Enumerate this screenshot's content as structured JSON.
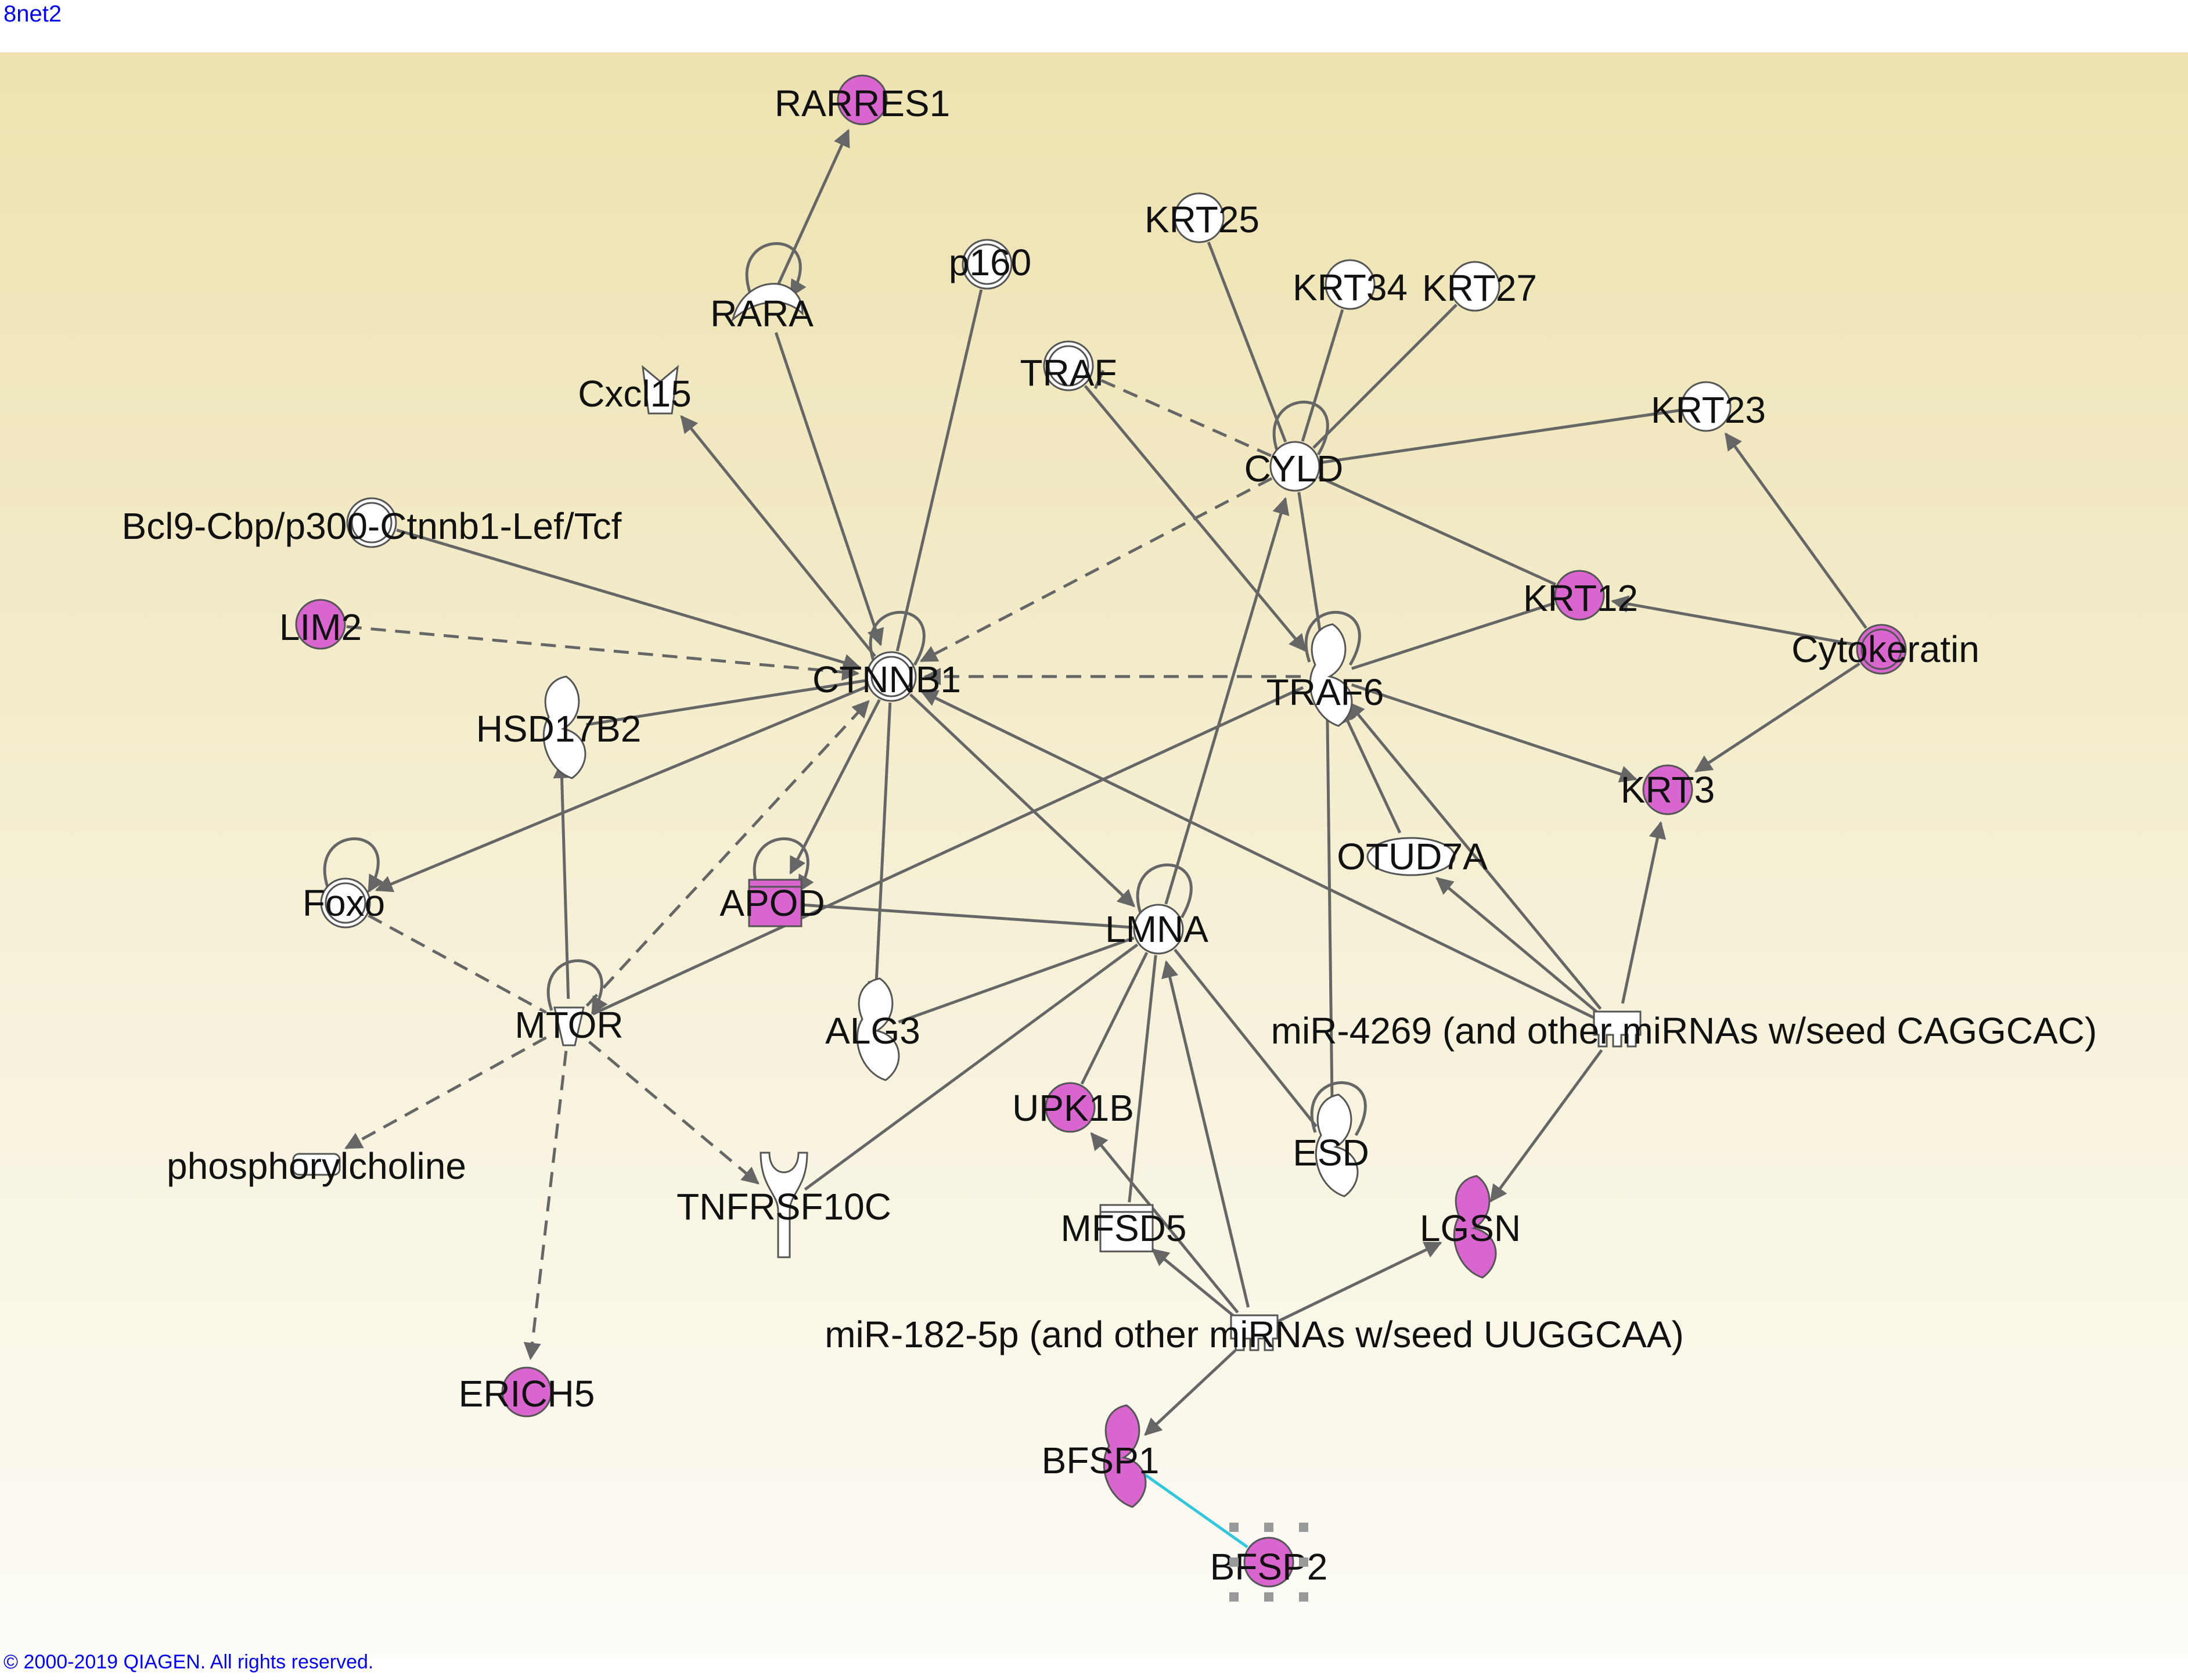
{
  "title": "8net2",
  "footer": "© 2000-2019 QIAGEN. All rights reserved.",
  "colors": {
    "highlight": "#d966cf",
    "plain": "#ffffff",
    "edge": "#666666",
    "binding": "#33c6dd"
  },
  "nodes": [
    {
      "id": "RARRES1",
      "label": "RARRES1",
      "shape": "circle",
      "hl": true
    },
    {
      "id": "RARA",
      "label": "RARA",
      "shape": "nuclear-receptor",
      "hl": false
    },
    {
      "id": "p160",
      "label": "p160",
      "shape": "double-circle",
      "hl": false
    },
    {
      "id": "Cxcl15",
      "label": "Cxcl15",
      "shape": "cytokine",
      "hl": false
    },
    {
      "id": "KRT25",
      "label": "KRT25",
      "shape": "circle",
      "hl": false
    },
    {
      "id": "KRT34",
      "label": "KRT34",
      "shape": "circle",
      "hl": false
    },
    {
      "id": "KRT27",
      "label": "KRT27",
      "shape": "circle",
      "hl": false
    },
    {
      "id": "TRAF",
      "label": "TRAF",
      "shape": "double-circle",
      "hl": false
    },
    {
      "id": "KRT23",
      "label": "KRT23",
      "shape": "circle",
      "hl": false
    },
    {
      "id": "CYLD",
      "label": "CYLD",
      "shape": "circle",
      "hl": false
    },
    {
      "id": "Bcl9",
      "label": "Bcl9-Cbp/p300-Ctnnb1-Lef/Tcf",
      "shape": "double-circle",
      "hl": false
    },
    {
      "id": "LIM2",
      "label": "LIM2",
      "shape": "circle",
      "hl": true
    },
    {
      "id": "KRT12",
      "label": "KRT12",
      "shape": "circle",
      "hl": true
    },
    {
      "id": "Cytokeratin",
      "label": "Cytokeratin",
      "shape": "double-circle",
      "hl": true
    },
    {
      "id": "CTNNB1",
      "label": "CTNNB1",
      "shape": "double-circle",
      "hl": false
    },
    {
      "id": "TRAF6",
      "label": "TRAF6",
      "shape": "enzyme",
      "hl": false
    },
    {
      "id": "HSD17B2",
      "label": "HSD17B2",
      "shape": "enzyme",
      "hl": false
    },
    {
      "id": "KRT3",
      "label": "KRT3",
      "shape": "circle",
      "hl": true
    },
    {
      "id": "Foxo",
      "label": "Foxo",
      "shape": "double-circle",
      "hl": false
    },
    {
      "id": "APOD",
      "label": "APOD",
      "shape": "transporter",
      "hl": true
    },
    {
      "id": "OTUD7A",
      "label": "OTUD7A",
      "shape": "peptidase",
      "hl": false
    },
    {
      "id": "LMNA",
      "label": "LMNA",
      "shape": "circle",
      "hl": false
    },
    {
      "id": "MTOR",
      "label": "MTOR",
      "shape": "kinase",
      "hl": false
    },
    {
      "id": "ALG3",
      "label": "ALG3",
      "shape": "enzyme",
      "hl": false
    },
    {
      "id": "miR4269",
      "label": "miR-4269 (and other miRNAs w/seed CAGGCAC)",
      "shape": "mirna",
      "hl": false
    },
    {
      "id": "UPK1B",
      "label": "UPK1B",
      "shape": "circle",
      "hl": true
    },
    {
      "id": "ESD",
      "label": "ESD",
      "shape": "enzyme",
      "hl": false
    },
    {
      "id": "phosphorylcholine",
      "label": "phosphorylcholine",
      "shape": "chemical",
      "hl": false
    },
    {
      "id": "TNFRSF10C",
      "label": "TNFRSF10C",
      "shape": "receptor",
      "hl": false
    },
    {
      "id": "MFSD5",
      "label": "MFSD5",
      "shape": "transporter",
      "hl": false
    },
    {
      "id": "LGSN",
      "label": "LGSN",
      "shape": "enzyme",
      "hl": true
    },
    {
      "id": "miR182",
      "label": "miR-182-5p (and other miRNAs w/seed UUGGCAA)",
      "shape": "mirna",
      "hl": false
    },
    {
      "id": "ERICH5",
      "label": "ERICH5",
      "shape": "circle",
      "hl": true
    },
    {
      "id": "BFSP1",
      "label": "BFSP1",
      "shape": "enzyme",
      "hl": true
    },
    {
      "id": "BFSP2",
      "label": "BFSP2",
      "shape": "circle",
      "hl": true
    }
  ],
  "edges": [
    {
      "from": "RARA",
      "to": "RARRES1",
      "style": "solid",
      "end": "arrow"
    },
    {
      "from": "RARA",
      "to": "RARA",
      "style": "solid",
      "end": "arrow"
    },
    {
      "from": "RARA",
      "to": "CTNNB1",
      "style": "solid",
      "end": "arrow"
    },
    {
      "from": "p160",
      "to": "CTNNB1",
      "style": "solid",
      "end": "none"
    },
    {
      "from": "CTNNB1",
      "to": "Cxcl15",
      "style": "solid",
      "end": "arrow"
    },
    {
      "from": "Bcl9",
      "to": "CTNNB1",
      "style": "solid",
      "end": "arrow"
    },
    {
      "from": "LIM2",
      "to": "CTNNB1",
      "style": "dashed",
      "end": "arrow"
    },
    {
      "from": "CTNNB1",
      "to": "CTNNB1",
      "style": "solid",
      "end": "inhibit"
    },
    {
      "from": "CYLD",
      "to": "CTNNB1",
      "style": "dashed",
      "end": "arrow"
    },
    {
      "from": "TRAF6",
      "to": "CTNNB1",
      "style": "dashed",
      "end": "arrow"
    },
    {
      "from": "CTNNB1",
      "to": "HSD17B2",
      "style": "solid",
      "end": "none"
    },
    {
      "from": "CTNNB1",
      "to": "Foxo",
      "style": "solid",
      "end": "arrow"
    },
    {
      "from": "CTNNB1",
      "to": "APOD",
      "style": "solid",
      "end": "arrow"
    },
    {
      "from": "CTNNB1",
      "to": "ALG3",
      "style": "solid",
      "end": "arrow"
    },
    {
      "from": "CTNNB1",
      "to": "LMNA",
      "style": "solid",
      "end": "arrow"
    },
    {
      "from": "MTOR",
      "to": "CTNNB1",
      "style": "dashed",
      "end": "arrow"
    },
    {
      "from": "miR4269",
      "to": "CTNNB1",
      "style": "solid",
      "end": "arrow"
    },
    {
      "from": "KRT25",
      "to": "CYLD",
      "style": "solid",
      "end": "none"
    },
    {
      "from": "KRT34",
      "to": "CYLD",
      "style": "solid",
      "end": "none"
    },
    {
      "from": "KRT27",
      "to": "CYLD",
      "style": "solid",
      "end": "none"
    },
    {
      "from": "KRT23",
      "to": "CYLD",
      "style": "solid",
      "end": "none"
    },
    {
      "from": "CYLD",
      "to": "TRAF",
      "style": "dashed",
      "end": "inhibit"
    },
    {
      "from": "CYLD",
      "to": "CYLD",
      "style": "solid",
      "end": "none"
    },
    {
      "from": "CYLD",
      "to": "TRAF6",
      "style": "solid",
      "end": "inhibit"
    },
    {
      "from": "CYLD",
      "to": "KRT12",
      "style": "solid",
      "end": "none"
    },
    {
      "from": "LMNA",
      "to": "CYLD",
      "style": "solid",
      "end": "arrow"
    },
    {
      "from": "TRAF",
      "to": "TRAF6",
      "style": "solid",
      "end": "arrow"
    },
    {
      "from": "TRAF6",
      "to": "TRAF6",
      "style": "solid",
      "end": "none"
    },
    {
      "from": "TRAF6",
      "to": "KRT12",
      "style": "solid",
      "end": "none"
    },
    {
      "from": "TRAF6",
      "to": "KRT3",
      "style": "solid",
      "end": "arrow"
    },
    {
      "from": "OTUD7A",
      "to": "TRAF6",
      "style": "solid",
      "end": "arrow"
    },
    {
      "from": "miR4269",
      "to": "TRAF6",
      "style": "solid",
      "end": "arrow"
    },
    {
      "from": "TRAF6",
      "to": "MTOR",
      "style": "solid",
      "end": "none"
    },
    {
      "from": "ESD",
      "to": "TRAF6",
      "style": "solid",
      "end": "none"
    },
    {
      "from": "Cytokeratin",
      "to": "KRT23",
      "style": "solid",
      "end": "arrow"
    },
    {
      "from": "Cytokeratin",
      "to": "KRT12",
      "style": "solid",
      "end": "arrow"
    },
    {
      "from": "Cytokeratin",
      "to": "KRT3",
      "style": "solid",
      "end": "arrow"
    },
    {
      "from": "miR4269",
      "to": "KRT3",
      "style": "solid",
      "end": "arrow"
    },
    {
      "from": "miR4269",
      "to": "OTUD7A",
      "style": "solid",
      "end": "arrow"
    },
    {
      "from": "miR4269",
      "to": "LGSN",
      "style": "solid",
      "end": "arrow"
    },
    {
      "from": "MTOR",
      "to": "HSD17B2",
      "style": "solid",
      "end": "arrow"
    },
    {
      "from": "MTOR",
      "to": "MTOR",
      "style": "solid",
      "end": "arrow"
    },
    {
      "from": "Foxo",
      "to": "Foxo",
      "style": "solid",
      "end": "arrow"
    },
    {
      "from": "Foxo",
      "to": "MTOR",
      "style": "dashed",
      "end": "none"
    },
    {
      "from": "MTOR",
      "to": "phosphorylcholine",
      "style": "dashed",
      "end": "arrow"
    },
    {
      "from": "MTOR",
      "to": "TNFRSF10C",
      "style": "dashed",
      "end": "arrow"
    },
    {
      "from": "MTOR",
      "to": "ERICH5",
      "style": "dashed",
      "end": "arrow"
    },
    {
      "from": "APOD",
      "to": "APOD",
      "style": "solid",
      "end": "arrow"
    },
    {
      "from": "APOD",
      "to": "LMNA",
      "style": "solid",
      "end": "none"
    },
    {
      "from": "LMNA",
      "to": "LMNA",
      "style": "solid",
      "end": "none"
    },
    {
      "from": "LMNA",
      "to": "ALG3",
      "style": "solid",
      "end": "none"
    },
    {
      "from": "LMNA",
      "to": "TNFRSF10C",
      "style": "solid",
      "end": "none"
    },
    {
      "from": "LMNA",
      "to": "MFSD5",
      "style": "solid",
      "end": "none"
    },
    {
      "from": "LMNA",
      "to": "ESD",
      "style": "solid",
      "end": "none"
    },
    {
      "from": "LMNA",
      "to": "UPK1B",
      "style": "solid",
      "end": "none"
    },
    {
      "from": "ESD",
      "to": "ESD",
      "style": "solid",
      "end": "none"
    },
    {
      "from": "miR182",
      "to": "LMNA",
      "style": "solid",
      "end": "arrow"
    },
    {
      "from": "miR182",
      "to": "UPK1B",
      "style": "solid",
      "end": "arrow"
    },
    {
      "from": "miR182",
      "to": "MFSD5",
      "style": "solid",
      "end": "arrow"
    },
    {
      "from": "miR182",
      "to": "LGSN",
      "style": "solid",
      "end": "arrow"
    },
    {
      "from": "miR182",
      "to": "BFSP1",
      "style": "solid",
      "end": "arrow"
    },
    {
      "from": "BFSP1",
      "to": "BFSP2",
      "style": "binding",
      "end": "none"
    }
  ]
}
